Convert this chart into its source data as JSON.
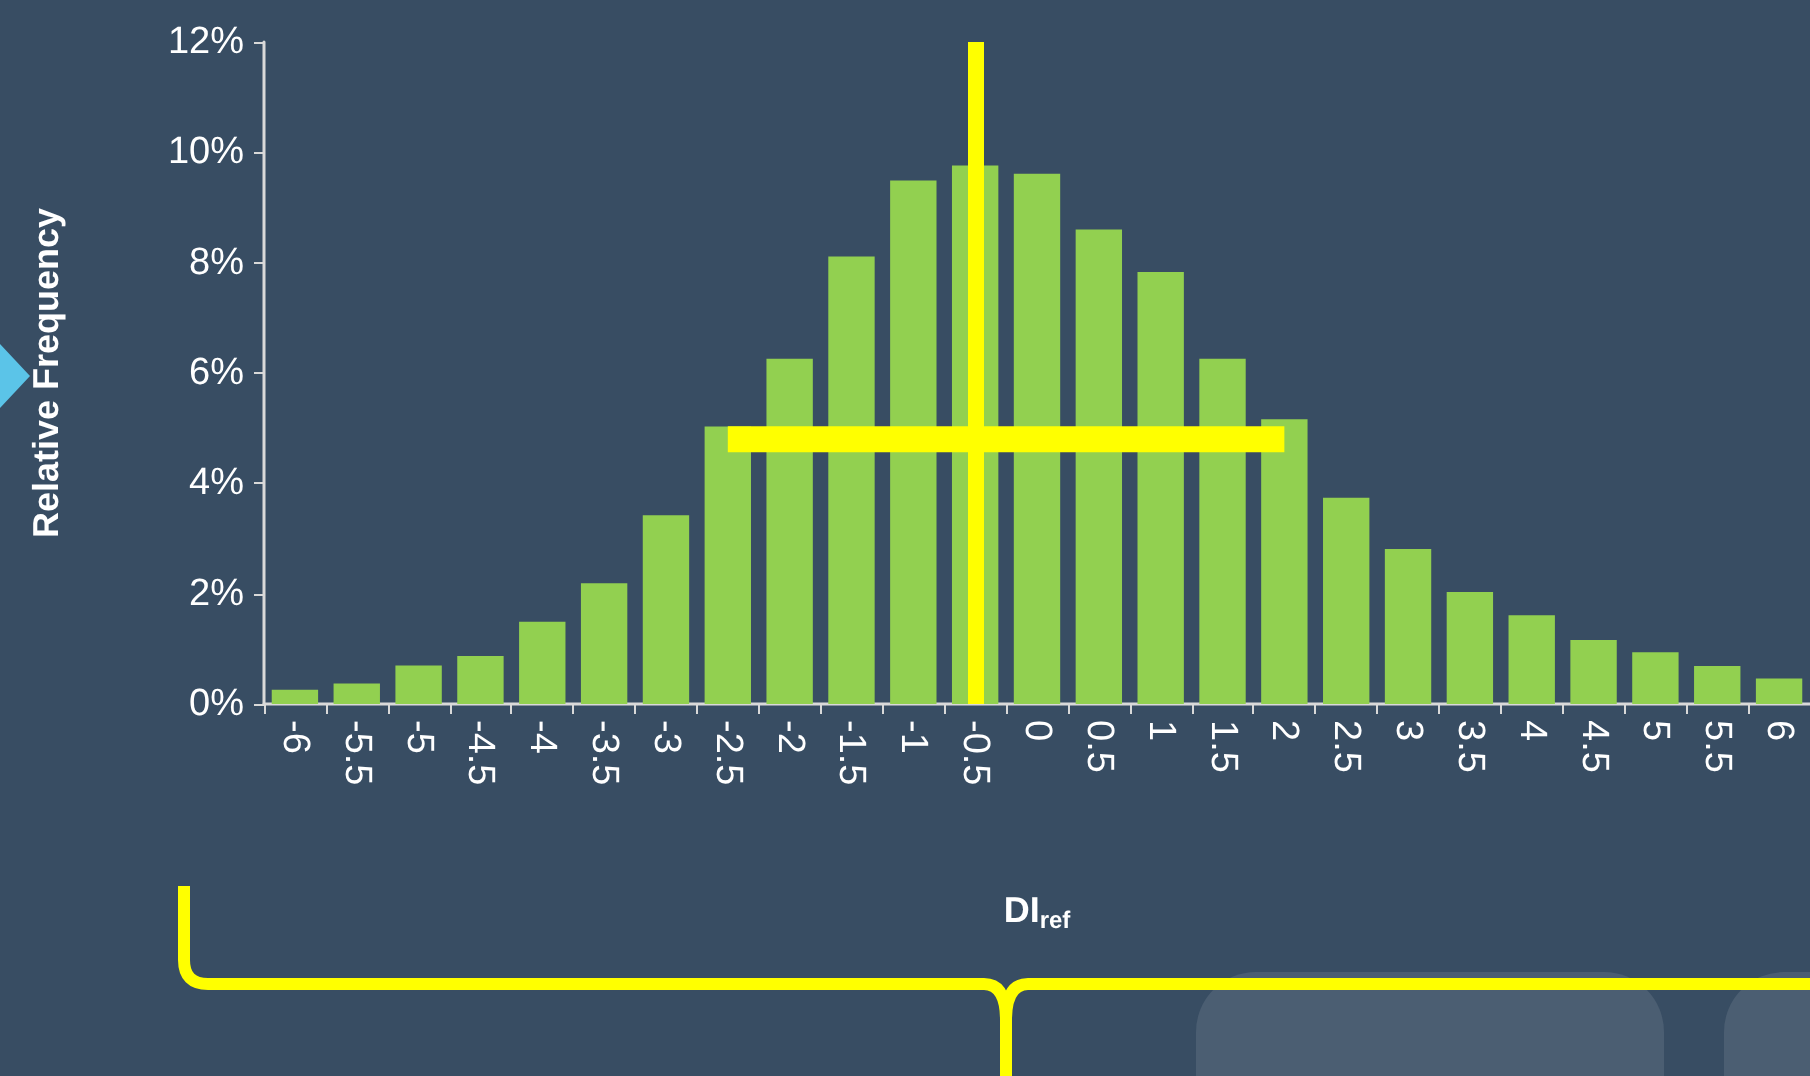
{
  "chart_data": {
    "type": "bar",
    "xlabel": "DI$_{ref}$",
    "ylabel": "Relative Frequency",
    "categories": [
      "-6",
      "-5.5",
      "-5",
      "-4.5",
      "-4",
      "-3.5",
      "-3",
      "-2.5",
      "-2",
      "-1.5",
      "-1",
      "-0.5",
      "0",
      "0.5",
      "1",
      "1.5",
      "2",
      "2.5",
      "3",
      "3.5",
      "4",
      "4.5",
      "5",
      "5.5",
      "6"
    ],
    "series": [
      {
        "color": "#92d050",
        "values": [
          0.26,
          0.37,
          0.7,
          0.87,
          1.49,
          2.19,
          3.42,
          5.03,
          6.26,
          8.11,
          9.49,
          9.76,
          9.61,
          8.6,
          7.83,
          6.26,
          5.16,
          3.74,
          2.81,
          2.03,
          1.61,
          1.16,
          0.94,
          0.69,
          0.46
        ]
      },
      {
        "type": "line",
        "color": "#ffff00",
        "x": [
          "-2.5",
          "2"
        ],
        "values": [
          4.8,
          4.8
        ]
      }
    ],
    "ylim": [
      0,
      12
    ],
    "yticks": [
      {
        "value": 0,
        "label": "0%"
      },
      {
        "value": 2,
        "label": "2%"
      },
      {
        "value": 4,
        "label": "4%"
      },
      {
        "value": 6,
        "label": "6%"
      },
      {
        "value": 8,
        "label": "8%"
      },
      {
        "value": 10,
        "label": "10%"
      },
      {
        "value": 12,
        "label": "12%"
      }
    ],
    "ref_lines": [
      {
        "axis": "x",
        "value": "-0.5",
        "color": "#ffff00"
      }
    ],
    "marker": "none",
    "grid": false
  }
}
